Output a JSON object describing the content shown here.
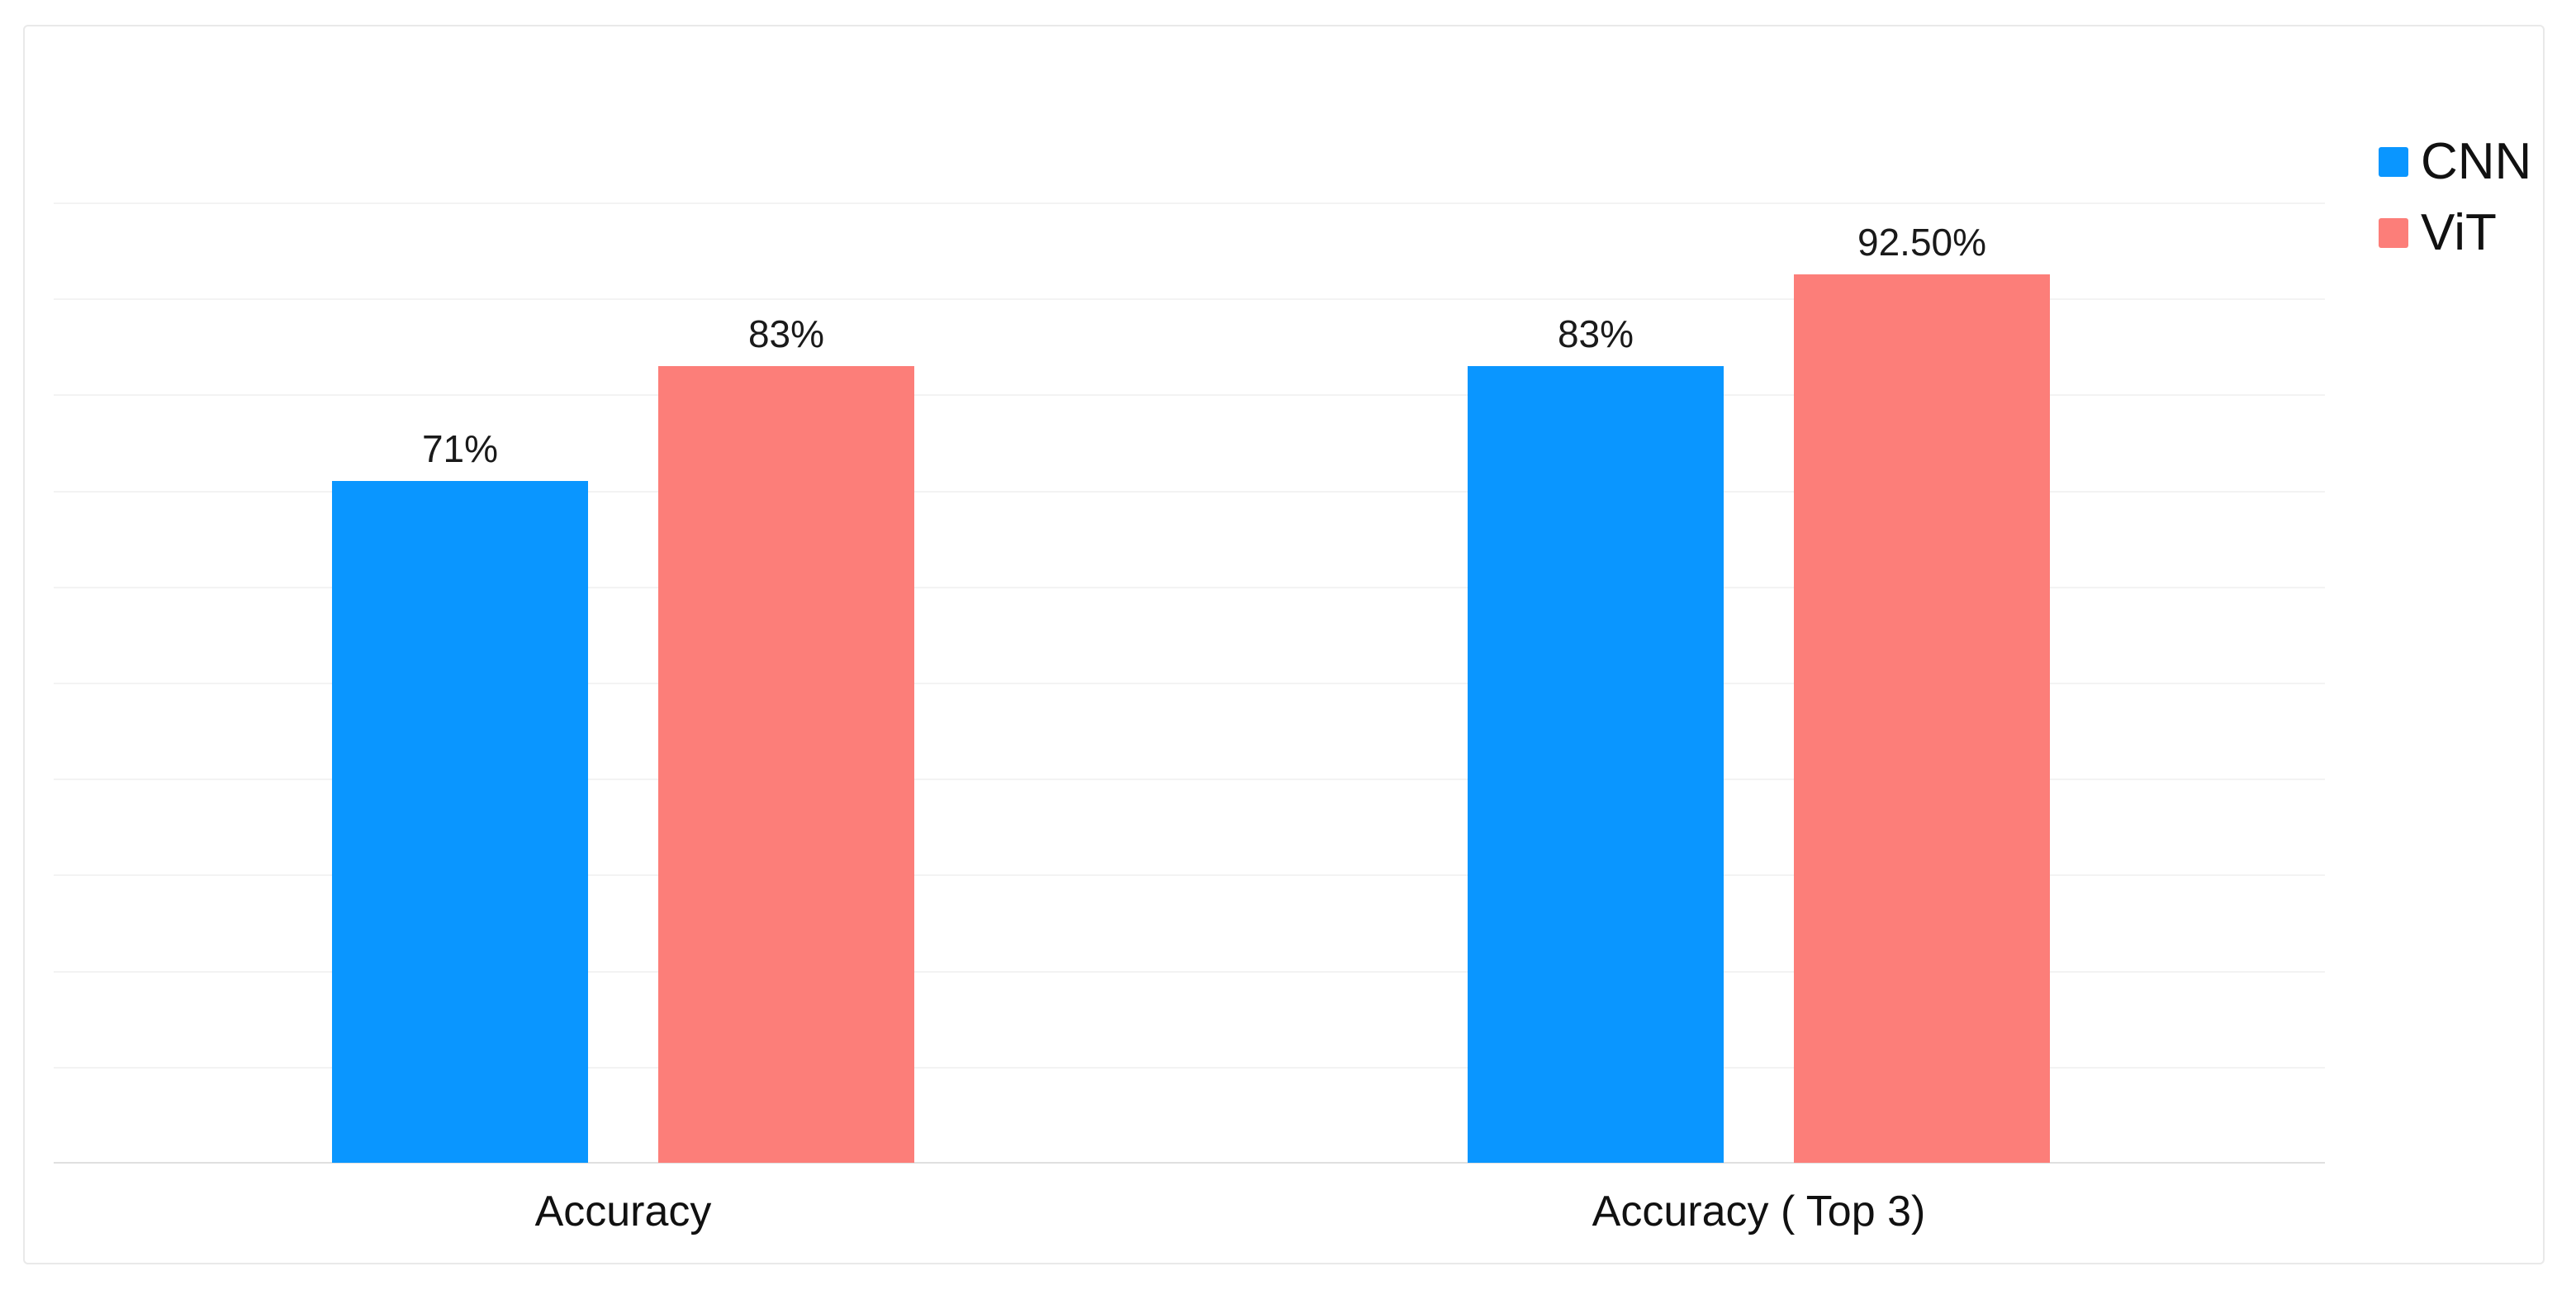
{
  "chart_data": {
    "type": "bar",
    "categories": [
      "Accuracy",
      "Accuracy ( Top 3)"
    ],
    "series": [
      {
        "name": "CNN",
        "color": "#0a96ff",
        "values": [
          71,
          83
        ],
        "labels": [
          "71%",
          "83%"
        ]
      },
      {
        "name": "ViT",
        "color": "#fc7e79",
        "values": [
          83,
          92.5
        ],
        "labels": [
          "83%",
          "92.50%"
        ]
      }
    ],
    "title": "",
    "xlabel": "",
    "ylabel": "",
    "ylim": [
      0,
      100
    ],
    "gridline_interval": 10,
    "grid": true,
    "y_axis_labels_visible": false,
    "legend_position": "top-right",
    "colors": {
      "gridline": "#f3f3f3",
      "axis_baseline": "#e0e0e0",
      "card_border": "#e9e9e9",
      "background": "#ffffff",
      "text": "#1a1a1a"
    }
  }
}
